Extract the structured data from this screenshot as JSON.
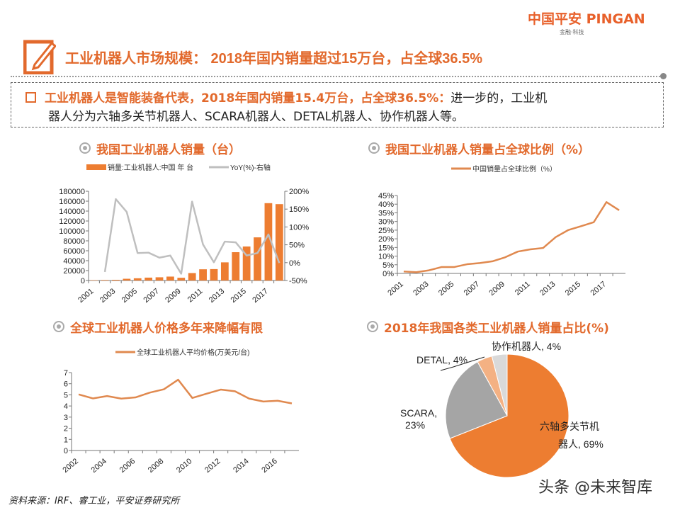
{
  "logo": {
    "name": "中国平安 PINGAN",
    "tagline": "金融·科技"
  },
  "title": "工业机器人市场规模： 2018年国内销量超过15万台，占全球36.5%",
  "summary": {
    "highlight": "工业机器人是智能装备代表，2018年国内销量15.4万台，占全球36.5%：",
    "rest_line1": "进一步的，工业机",
    "line2": "器人分为六轴多关节机器人、SCARA机器人、DETAL机器人、协作机器人等。"
  },
  "colors": {
    "accent": "#E2692C",
    "bar": "#ED7D31",
    "gray_line": "#BFBFBF",
    "line": "#E0894F"
  },
  "sections": {
    "s1": "我国工业机器人销量（台）",
    "s2": "我国工业机器人销量占全球比例（%）",
    "s3": "全球工业机器人价格多年来降幅有限",
    "s4": "2018年我国各类工业机器人销量占比(%)"
  },
  "chart_data": [
    {
      "type": "bar",
      "categories": [
        "2001",
        "2002",
        "2003",
        "2004",
        "2005",
        "2006",
        "2007",
        "2008",
        "2009",
        "2010",
        "2011",
        "2012",
        "2013",
        "2014",
        "2015",
        "2016",
        "2017",
        "2018"
      ],
      "x_tick_labels": [
        "2001",
        "2003",
        "2005",
        "2007",
        "2009",
        "2011",
        "2013",
        "2015",
        "2017"
      ],
      "series": [
        {
          "name": "销量:工业机器人:中国 年 台",
          "type": "bar",
          "axis": "left",
          "values": [
            700,
            1000,
            1400,
            3500,
            4500,
            5800,
            6500,
            7900,
            5500,
            15000,
            22600,
            23000,
            36600,
            57100,
            68600,
            87000,
            156000,
            154000
          ]
        },
        {
          "name": "YoY(%)-右轴",
          "type": "line",
          "axis": "right",
          "values": [
            null,
            -26,
            178,
            142,
            27,
            28,
            14,
            20,
            -31,
            171,
            51,
            1,
            59,
            57,
            20,
            27,
            79,
            -1
          ]
        }
      ],
      "ylim": [
        0,
        180000
      ],
      "yticks": [
        "0",
        "20000",
        "40000",
        "60000",
        "80000",
        "100000",
        "120000",
        "140000",
        "160000",
        "180000"
      ],
      "y2lim": [
        -50,
        200
      ],
      "y2ticks": [
        "-50%",
        "0%",
        "50%",
        "100%",
        "150%",
        "200%"
      ],
      "legend": "top"
    },
    {
      "type": "line",
      "categories": [
        "2001",
        "2002",
        "2003",
        "2004",
        "2005",
        "2006",
        "2007",
        "2008",
        "2009",
        "2010",
        "2011",
        "2012",
        "2013",
        "2014",
        "2015",
        "2016",
        "2017",
        "2018"
      ],
      "x_tick_labels": [
        "2001",
        "2003",
        "2005",
        "2007",
        "2009",
        "2011",
        "2013",
        "2015",
        "2017"
      ],
      "series": [
        {
          "name": "中国销量占全球比例（%）",
          "values": [
            1.1,
            0.7,
            1.8,
            3.7,
            3.7,
            5.3,
            6.0,
            7.0,
            9.3,
            12.6,
            13.9,
            14.7,
            21.0,
            25.1,
            27.3,
            29.6,
            41.2,
            36.5
          ]
        }
      ],
      "ylim": [
        0,
        45
      ],
      "yticks": [
        "0%",
        "5%",
        "10%",
        "15%",
        "20%",
        "25%",
        "30%",
        "35%",
        "40%",
        "45%"
      ],
      "legend": "top"
    },
    {
      "type": "line",
      "categories": [
        "2002",
        "2003",
        "2004",
        "2005",
        "2006",
        "2007",
        "2008",
        "2009",
        "2010",
        "2011",
        "2012",
        "2013",
        "2014",
        "2015",
        "2016",
        "2017"
      ],
      "x_tick_labels": [
        "2002",
        "2004",
        "2006",
        "2008",
        "2010",
        "2012",
        "2014",
        "2016"
      ],
      "series": [
        {
          "name": "全球工业机器人平均价格(万美元/台)",
          "values": [
            5.04,
            4.68,
            4.89,
            4.66,
            4.77,
            5.2,
            5.5,
            6.36,
            4.72,
            5.1,
            5.47,
            5.32,
            4.66,
            4.4,
            4.47,
            4.23
          ]
        }
      ],
      "ylim": [
        0,
        7
      ],
      "yticks": [
        "0",
        "1",
        "2",
        "3",
        "4",
        "5",
        "6",
        "7"
      ],
      "legend": "top"
    },
    {
      "type": "pie",
      "slices": [
        {
          "label": "六轴多关节机器人, 69%",
          "value": 69,
          "color": "#ED7D31"
        },
        {
          "label": "SCARA, 23%",
          "value": 23,
          "color": "#A5A5A5"
        },
        {
          "label": "DETAL, 4%",
          "value": 4,
          "color": "#F4B183"
        },
        {
          "label": "协作机器人, 4%",
          "value": 4,
          "color": "#D9D9D9"
        }
      ]
    }
  ],
  "source": "资料来源：IRF、睿工业，平安证券研究所",
  "watermark": "头条 @未来智库"
}
